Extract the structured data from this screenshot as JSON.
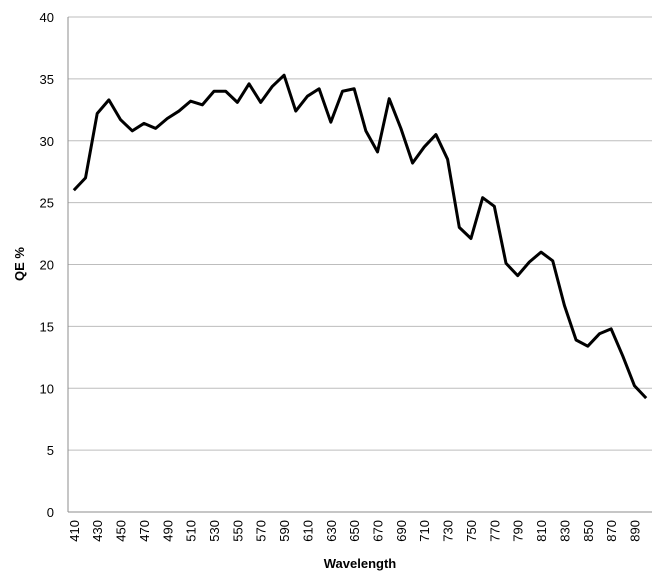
{
  "chart_data": {
    "type": "line",
    "x_label": "Wavelength",
    "y_label": "QE %",
    "categories": [
      410,
      null,
      430,
      null,
      450,
      null,
      470,
      null,
      490,
      null,
      510,
      null,
      530,
      null,
      550,
      null,
      570,
      null,
      590,
      null,
      610,
      null,
      630,
      null,
      650,
      null,
      670,
      null,
      690,
      null,
      710,
      null,
      730,
      null,
      750,
      null,
      770,
      null,
      790,
      null,
      810,
      null,
      830,
      null,
      850,
      null,
      870,
      null,
      890,
      null
    ],
    "values": [
      26.0,
      27.0,
      32.2,
      33.3,
      31.7,
      30.8,
      31.4,
      31.0,
      31.8,
      32.4,
      33.2,
      32.9,
      34.0,
      34.0,
      33.1,
      34.6,
      33.1,
      34.4,
      35.3,
      32.4,
      33.6,
      34.2,
      31.5,
      34.0,
      34.2,
      30.8,
      29.1,
      33.4,
      31.0,
      28.2,
      29.5,
      30.5,
      28.5,
      23.0,
      22.1,
      25.4,
      24.7,
      20.1,
      19.1,
      20.2,
      21.0,
      20.3,
      16.7,
      13.9,
      13.4,
      14.4,
      14.8,
      12.6,
      10.2,
      9.2
    ],
    "color": "#000000",
    "ylim": [
      0,
      40
    ],
    "yticks": [
      0,
      5,
      10,
      15,
      20,
      25,
      30,
      35,
      40
    ],
    "grid": true
  }
}
